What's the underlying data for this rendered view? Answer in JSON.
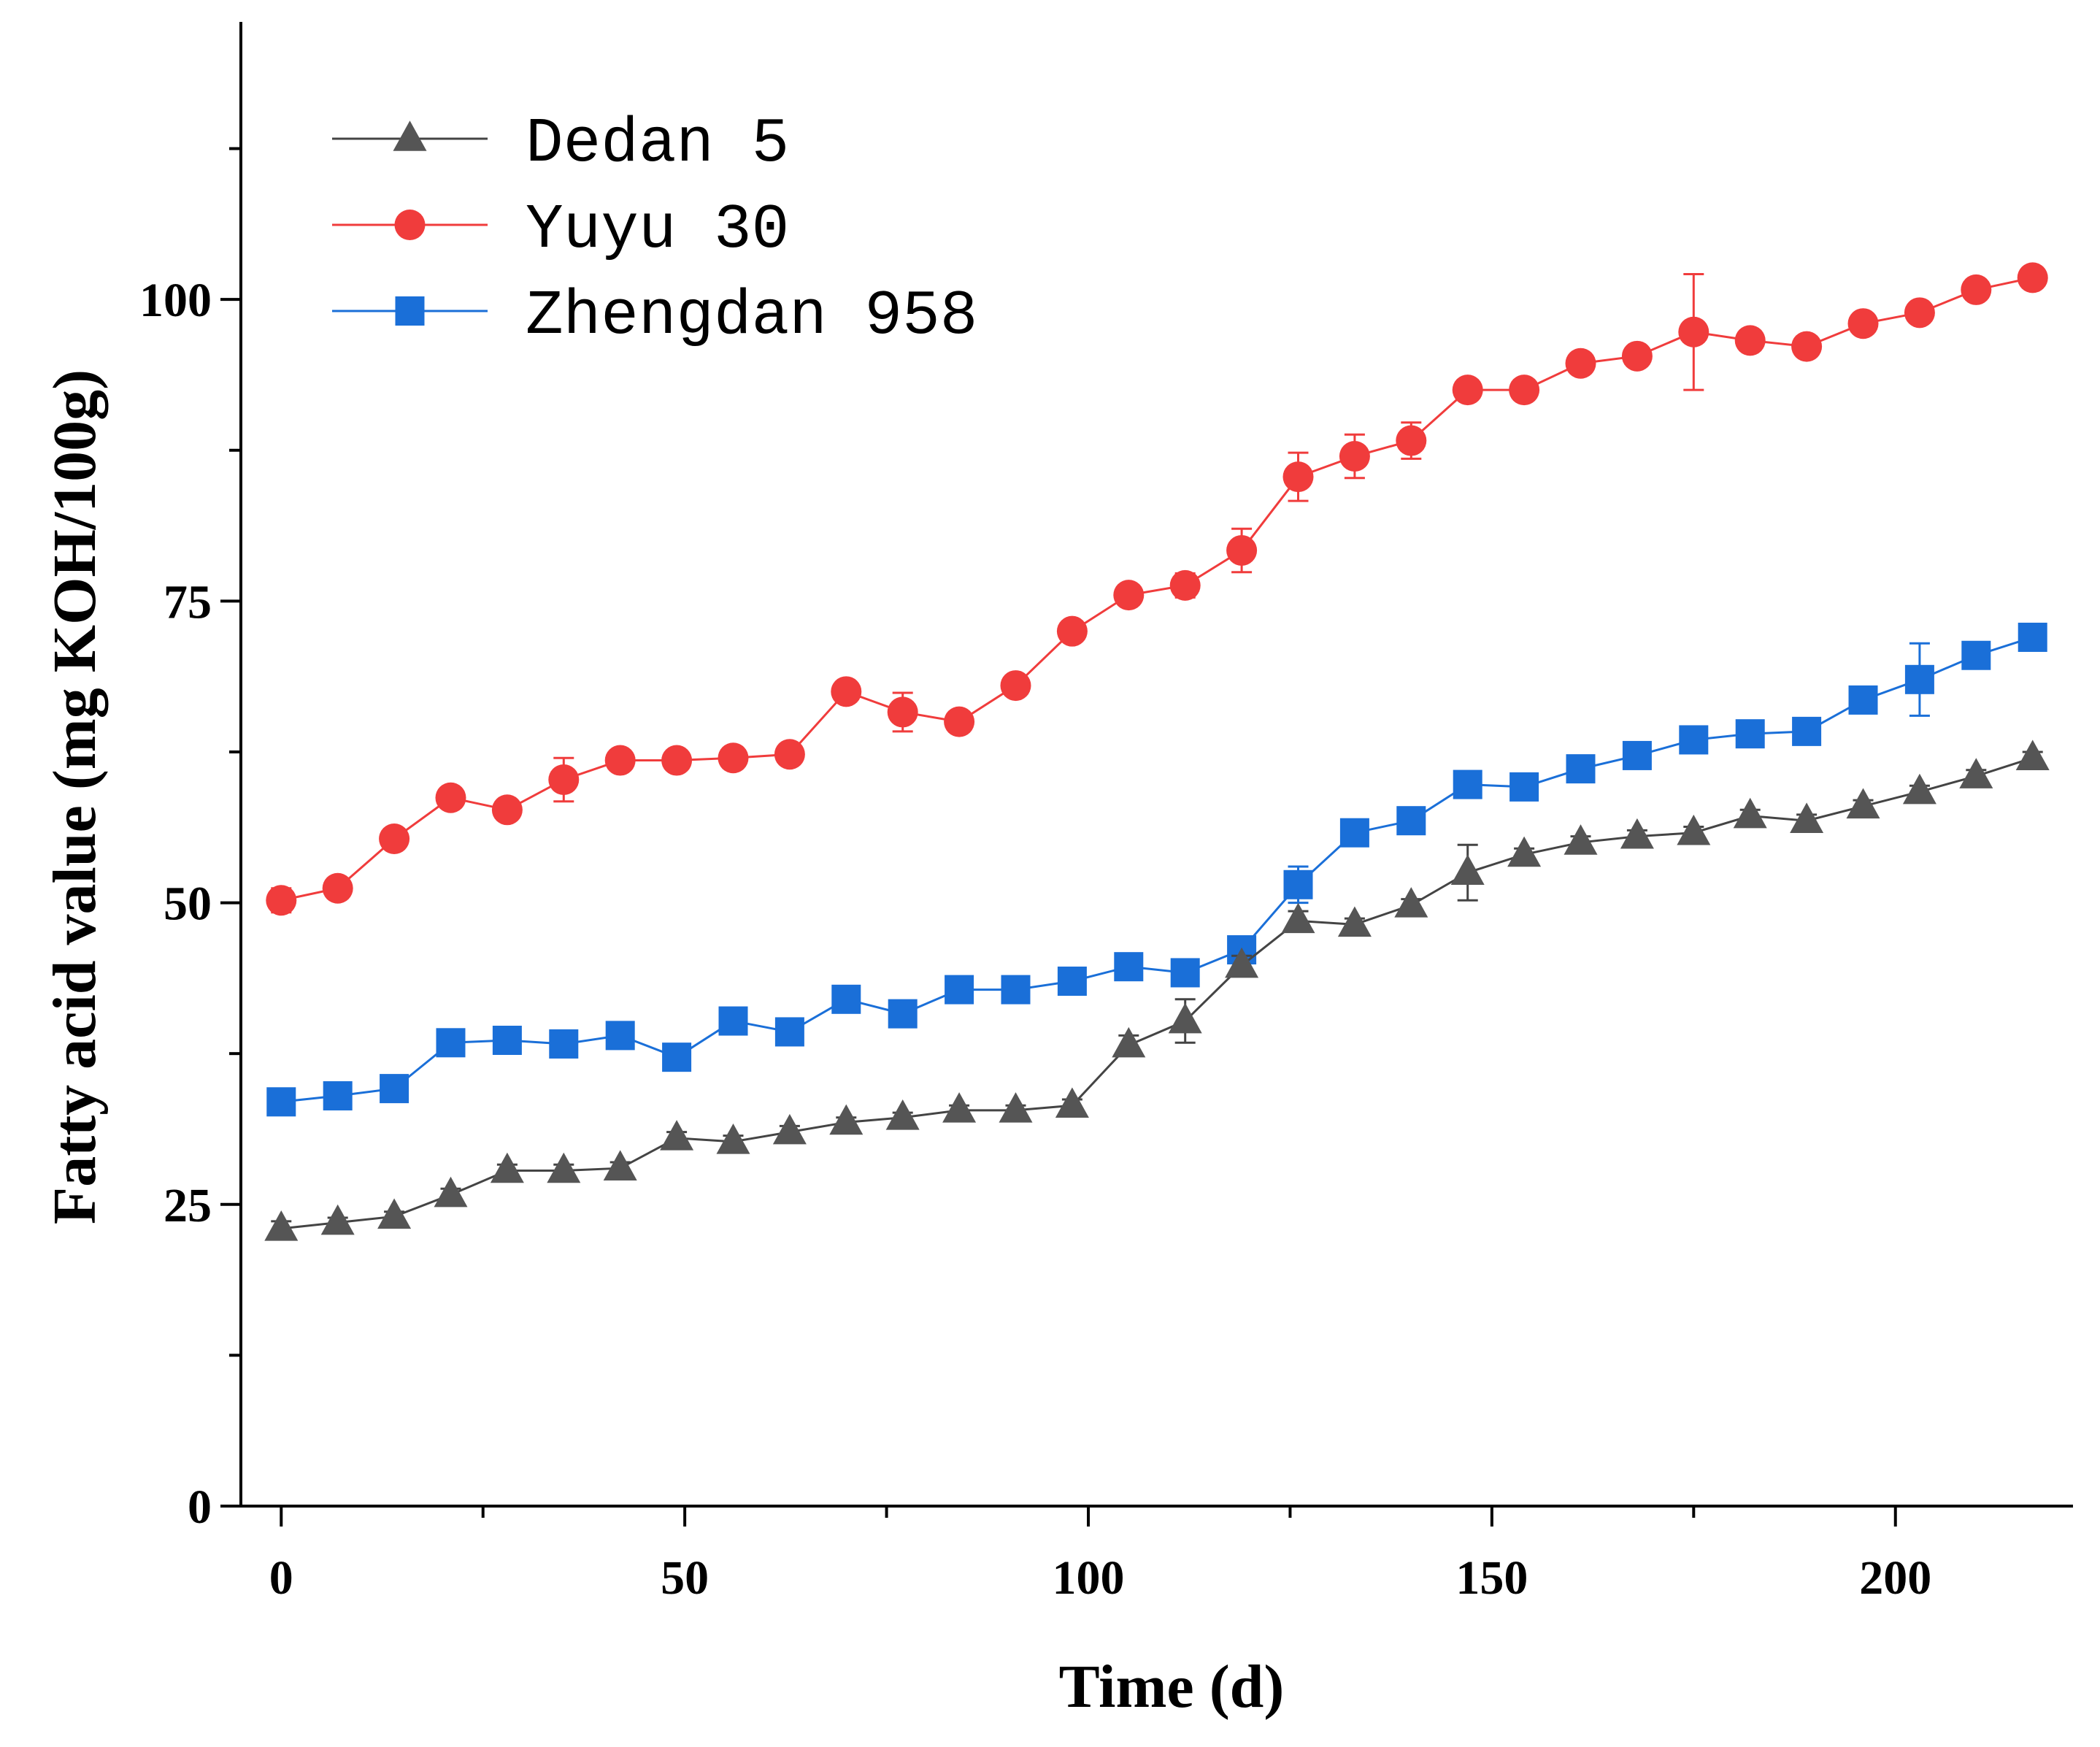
{
  "chart_data": {
    "type": "line",
    "title": "",
    "xlabel": "Time (d)",
    "ylabel": "Fatty acid value (mg KOH/100g)",
    "xlim": [
      -5,
      222
    ],
    "ylim": [
      0,
      123
    ],
    "x_ticks": [
      0,
      50,
      100,
      150,
      200
    ],
    "x_minor_ticks": [
      25,
      75,
      125,
      175
    ],
    "y_ticks": [
      0,
      25,
      50,
      75,
      100
    ],
    "y_minor_ticks": [
      12.5,
      37.5,
      62.5,
      87.5,
      112.5
    ],
    "x_tick_labels": [
      "0",
      "50",
      "100",
      "150",
      "200"
    ],
    "y_tick_labels": [
      "0",
      "25",
      "50",
      "75",
      "100"
    ],
    "grid": false,
    "legend_position": "top-left",
    "x": [
      0,
      7,
      14,
      21,
      28,
      35,
      42,
      49,
      56,
      63,
      70,
      77,
      84,
      91,
      98,
      105,
      112,
      119,
      126,
      133,
      140,
      147,
      154,
      161,
      168,
      175,
      182,
      189,
      196,
      203,
      210,
      217
    ],
    "series": [
      {
        "name": "Dedan 5",
        "marker": "triangle",
        "color": "#555555",
        "line_color": "#444444",
        "values": [
          23.0,
          23.5,
          24.0,
          25.8,
          27.8,
          27.8,
          28.0,
          30.5,
          30.2,
          31.0,
          31.8,
          32.2,
          32.8,
          32.8,
          33.2,
          38.2,
          40.2,
          44.8,
          48.5,
          48.2,
          49.8,
          52.5,
          54.0,
          55.0,
          55.5,
          55.8,
          57.2,
          56.8,
          58.0,
          59.2,
          60.5,
          62.0
        ],
        "errors": [
          0.6,
          0.4,
          0.4,
          0.5,
          0.5,
          0.5,
          0.5,
          0.5,
          0.5,
          0.5,
          0.4,
          0.4,
          0.4,
          0.4,
          0.5,
          0.8,
          1.8,
          0.8,
          0.8,
          0.5,
          0.5,
          2.3,
          0.5,
          0.5,
          0.5,
          0.5,
          0.5,
          0.5,
          0.5,
          0.5,
          0.5,
          0.5
        ]
      },
      {
        "name": "Yuyu 30",
        "marker": "circle",
        "color": "#f03c3c",
        "line_color": "#f03c3c",
        "values": [
          50.2,
          51.2,
          55.3,
          58.7,
          57.7,
          60.2,
          61.8,
          61.8,
          62.0,
          62.3,
          67.5,
          65.8,
          65.0,
          68.0,
          72.5,
          75.5,
          76.3,
          79.2,
          85.3,
          87.0,
          88.3,
          92.5,
          92.5,
          94.7,
          95.3,
          97.3,
          96.6,
          96.1,
          98.0,
          98.9,
          100.8,
          101.8
        ],
        "errors": [
          1.0,
          0.6,
          0.6,
          0.6,
          0.6,
          1.8,
          0.6,
          0.6,
          0.6,
          0.6,
          0.8,
          1.6,
          0.6,
          0.6,
          0.8,
          0.8,
          1.0,
          1.8,
          2.0,
          1.8,
          1.5,
          0.6,
          0.6,
          0.6,
          0.6,
          4.8,
          0.6,
          0.6,
          0.6,
          0.6,
          0.6,
          0.6
        ]
      },
      {
        "name": "Zhengdan 958",
        "marker": "square",
        "color": "#1a6fd8",
        "line_color": "#1a6fd8",
        "values": [
          33.5,
          34.0,
          34.6,
          38.4,
          38.6,
          38.3,
          39.0,
          37.2,
          40.2,
          39.3,
          42.0,
          40.8,
          42.8,
          42.8,
          43.5,
          44.7,
          44.2,
          46.1,
          51.5,
          55.8,
          56.8,
          59.8,
          59.6,
          61.1,
          62.2,
          63.5,
          64.0,
          64.2,
          66.8,
          68.5,
          70.5,
          72.0
        ],
        "errors": [
          0.5,
          0.5,
          0.5,
          0.5,
          0.5,
          0.5,
          0.5,
          0.5,
          0.5,
          0.5,
          0.5,
          0.5,
          0.5,
          0.5,
          0.5,
          0.5,
          0.5,
          0.5,
          1.5,
          0.8,
          0.6,
          0.5,
          0.5,
          0.5,
          0.5,
          0.5,
          0.5,
          0.5,
          0.5,
          3.0,
          0.5,
          0.5
        ]
      }
    ]
  }
}
